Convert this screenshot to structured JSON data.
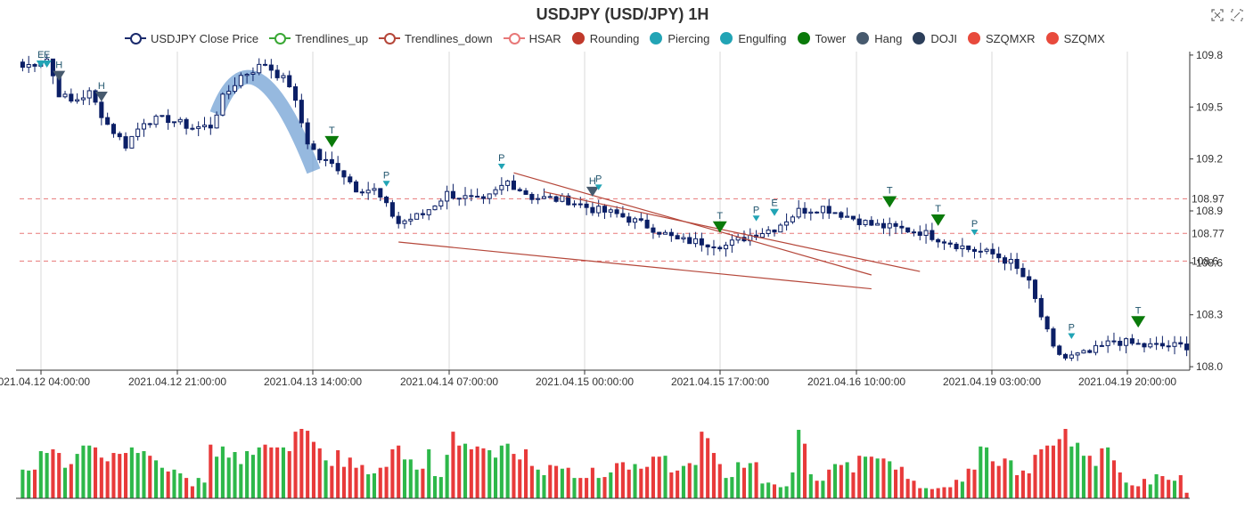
{
  "title": "USDJPY (USD/JPY) 1H",
  "legend": [
    {
      "label": "USDJPY Close Price",
      "kind": "line",
      "color": "#1a2a6c"
    },
    {
      "label": "Trendlines_up",
      "kind": "line",
      "color": "#3aa835"
    },
    {
      "label": "Trendlines_down",
      "kind": "line",
      "color": "#b5473a"
    },
    {
      "label": "HSAR",
      "kind": "line",
      "color": "#e87878"
    },
    {
      "label": "Rounding",
      "kind": "dot",
      "color": "#c0392b"
    },
    {
      "label": "Piercing",
      "kind": "dot",
      "color": "#22a4b5"
    },
    {
      "label": "Engulfing",
      "kind": "dot",
      "color": "#22a4b5"
    },
    {
      "label": "Tower",
      "kind": "dot",
      "color": "#0a7a0a"
    },
    {
      "label": "Hang",
      "kind": "dot",
      "color": "#475a6e"
    },
    {
      "label": "DOJI",
      "kind": "dot",
      "color": "#2c3e5a"
    },
    {
      "label": "SZQMXR",
      "kind": "dot",
      "color": "#e84a3c"
    },
    {
      "label": "SZQMX",
      "kind": "dot",
      "color": "#e84a3c"
    }
  ],
  "toolbar": {
    "zoom_icon": "zoom-icon",
    "reset_icon": "zoom-reset-icon"
  },
  "chart_data": {
    "type": "candlestick",
    "symbol": "USDJPY",
    "timeframe": "1H",
    "x_ticks": [
      "2021.04.12 04:00:00",
      "2021.04.12 21:00:00",
      "2021.04.13 14:00:00",
      "2021.04.14 07:00:00",
      "2021.04.15 00:00:00",
      "2021.04.15 17:00:00",
      "2021.04.16 10:00:00",
      "2021.04.19 03:00:00",
      "2021.04.19 20:00:00"
    ],
    "y_ticks": [
      108.0,
      108.3,
      108.6,
      108.9,
      109.2,
      109.5,
      109.8
    ],
    "ylim": [
      107.98,
      109.82
    ],
    "hsar_levels": [
      {
        "value": 108.97,
        "label": "108.97"
      },
      {
        "value": 108.77,
        "label": "108.77"
      },
      {
        "value": 108.61,
        "label": "108.6"
      }
    ],
    "trendlines_down": [
      {
        "from": [
          81,
          109.12
        ],
        "to": [
          140,
          108.53
        ]
      },
      {
        "from": [
          86,
          109.01
        ],
        "to": [
          148,
          108.55
        ]
      },
      {
        "from": [
          62,
          108.72
        ],
        "to": [
          140,
          108.45
        ]
      }
    ],
    "rounding": [
      {
        "from": [
          32,
          109.46
        ],
        "peak": [
          38,
          109.73
        ],
        "to": [
          48,
          109.13
        ]
      }
    ],
    "markers": [
      {
        "i": 3,
        "label": "E",
        "type": "Engulfing"
      },
      {
        "i": 4,
        "label": "E",
        "type": "Engulfing"
      },
      {
        "i": 6,
        "label": "H",
        "type": "Hang"
      },
      {
        "i": 13,
        "label": "H",
        "type": "Hang"
      },
      {
        "i": 51,
        "label": "T",
        "type": "Tower"
      },
      {
        "i": 60,
        "label": "P",
        "type": "Piercing"
      },
      {
        "i": 79,
        "label": "P",
        "type": "Piercing"
      },
      {
        "i": 94,
        "label": "H",
        "type": "Hang"
      },
      {
        "i": 95,
        "label": "P",
        "type": "Piercing"
      },
      {
        "i": 115,
        "label": "T",
        "type": "Tower"
      },
      {
        "i": 121,
        "label": "P",
        "type": "Piercing"
      },
      {
        "i": 124,
        "label": "E",
        "type": "Engulfing"
      },
      {
        "i": 143,
        "label": "T",
        "type": "Tower"
      },
      {
        "i": 151,
        "label": "T",
        "type": "Tower"
      },
      {
        "i": 157,
        "label": "P",
        "type": "Piercing"
      },
      {
        "i": 173,
        "label": "P",
        "type": "Piercing"
      },
      {
        "i": 184,
        "label": "T",
        "type": "Tower"
      }
    ],
    "ohlc_anchors": [
      [
        0,
        109.73
      ],
      [
        4,
        109.78
      ],
      [
        6,
        109.58
      ],
      [
        8,
        109.53
      ],
      [
        11,
        109.58
      ],
      [
        14,
        109.4
      ],
      [
        17,
        109.28
      ],
      [
        20,
        109.42
      ],
      [
        24,
        109.43
      ],
      [
        28,
        109.38
      ],
      [
        31,
        109.39
      ],
      [
        33,
        109.55
      ],
      [
        36,
        109.68
      ],
      [
        40,
        109.75
      ],
      [
        44,
        109.63
      ],
      [
        47,
        109.3
      ],
      [
        49,
        109.2
      ],
      [
        52,
        109.15
      ],
      [
        55,
        109.03
      ],
      [
        58,
        109.02
      ],
      [
        62,
        108.83
      ],
      [
        66,
        108.88
      ],
      [
        70,
        109.0
      ],
      [
        76,
        108.95
      ],
      [
        80,
        109.07
      ],
      [
        84,
        108.98
      ],
      [
        90,
        108.96
      ],
      [
        94,
        108.91
      ],
      [
        98,
        108.88
      ],
      [
        104,
        108.8
      ],
      [
        108,
        108.73
      ],
      [
        112,
        108.72
      ],
      [
        116,
        108.7
      ],
      [
        120,
        108.76
      ],
      [
        124,
        108.8
      ],
      [
        128,
        108.9
      ],
      [
        132,
        108.92
      ],
      [
        136,
        108.87
      ],
      [
        140,
        108.82
      ],
      [
        144,
        108.8
      ],
      [
        148,
        108.78
      ],
      [
        152,
        108.73
      ],
      [
        156,
        108.68
      ],
      [
        160,
        108.65
      ],
      [
        163,
        108.6
      ],
      [
        166,
        108.48
      ],
      [
        170,
        108.1
      ],
      [
        172,
        108.05
      ],
      [
        176,
        108.08
      ],
      [
        180,
        108.15
      ],
      [
        185,
        108.12
      ]
    ],
    "volume": [
      31,
      30,
      31,
      51,
      49,
      53,
      49,
      33,
      37,
      48,
      57,
      57,
      55,
      44,
      40,
      49,
      48,
      49,
      55,
      49,
      51,
      46,
      41,
      33,
      29,
      31,
      27,
      22,
      13,
      22,
      17,
      58,
      45,
      56,
      44,
      50,
      37,
      51,
      47,
      55,
      58,
      55,
      55,
      55,
      51,
      72,
      75,
      73,
      61,
      54,
      41,
      35,
      52,
      34,
      44,
      33,
      36,
      26,
      27,
      33,
      34,
      53,
      57,
      42,
      42,
      31,
      32,
      53,
      24,
      23,
      47,
      72,
      57,
      59,
      53,
      56,
      54,
      52,
      44,
      57,
      59,
      48,
      42,
      53,
      35,
      31,
      25,
      36,
      35,
      32,
      33,
      22,
      22,
      22,
      33,
      22,
      23,
      28,
      38,
      39,
      31,
      37,
      32,
      34,
      45,
      45,
      46,
      28,
      30,
      35,
      38,
      36,
      72,
      65,
      49,
      37,
      22,
      23,
      39,
      33,
      38,
      39,
      16,
      17,
      15,
      12,
      13,
      28,
      74,
      59,
      26,
      19,
      19,
      31,
      37,
      36,
      39,
      28,
      46,
      45,
      45,
      43,
      43,
      40,
      31,
      34,
      21,
      19,
      11,
      11,
      10,
      11,
      12,
      12,
      20,
      18,
      32,
      31,
      56,
      55,
      40,
      35,
      43,
      41,
      25,
      30,
      27,
      47,
      53,
      57,
      57,
      64,
      75,
      56,
      60,
      46,
      46,
      35,
      54,
      55,
      41,
      28,
      17,
      14,
      13,
      21,
      15,
      26,
      24,
      20,
      19,
      25,
      6
    ]
  }
}
